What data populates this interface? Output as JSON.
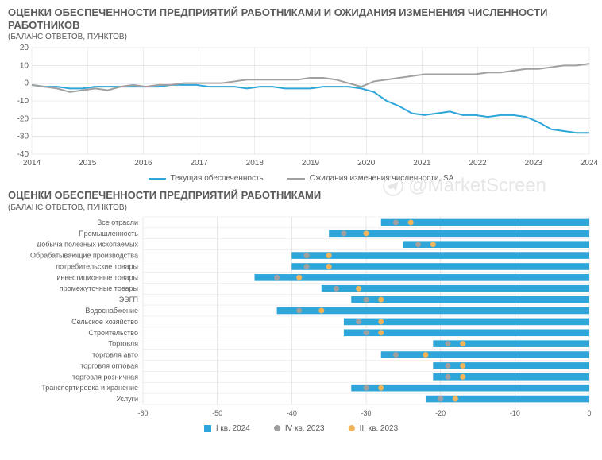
{
  "chart1": {
    "title": "ОЦЕНКИ ОБЕСПЕЧЕННОСТИ ПРЕДПРИЯТИЙ РАБОТНИКАМИ И ОЖИДАНИЯ ИЗМЕНЕНИЯ ЧИСЛЕННОСТИ РАБОТНИКОВ",
    "subtitle": "(БАЛАНС ОТВЕТОВ, ПУНКТОВ)",
    "type": "line",
    "x_labels": [
      "2014",
      "2015",
      "2016",
      "2017",
      "2018",
      "2019",
      "2020",
      "2021",
      "2022",
      "2023",
      "2024"
    ],
    "ylim": [
      -40,
      20
    ],
    "ytick_step": 10,
    "series": [
      {
        "name": "Текущая обеспеченность",
        "color": "#2fa6d9",
        "width": 2,
        "data": [
          -1,
          -2,
          -2,
          -3,
          -3,
          -2,
          -2,
          -2,
          -2,
          -2,
          -2,
          -1,
          -1,
          -1,
          -2,
          -2,
          -2,
          -3,
          -2,
          -2,
          -3,
          -3,
          -3,
          -2,
          -2,
          -2,
          -3,
          -5,
          -10,
          -13,
          -17,
          -18,
          -17,
          -16,
          -18,
          -18,
          -19,
          -18,
          -18,
          -19,
          -22,
          -26,
          -27,
          -28,
          -28
        ]
      },
      {
        "name": "Ожидания изменения численности, SA",
        "color": "#a0a0a0",
        "width": 2,
        "data": [
          -1,
          -2,
          -3,
          -5,
          -4,
          -3,
          -4,
          -2,
          -1,
          -2,
          -1,
          -1,
          0,
          0,
          0,
          0,
          1,
          2,
          2,
          2,
          2,
          2,
          3,
          3,
          2,
          0,
          -2,
          1,
          2,
          3,
          4,
          5,
          5,
          5,
          5,
          5,
          6,
          6,
          7,
          8,
          8,
          9,
          10,
          10,
          11
        ]
      }
    ],
    "background_color": "#ffffff",
    "grid_color": "#d9d9d9",
    "axis_color": "#5a5a5a",
    "label_fontsize": 10
  },
  "chart2": {
    "title": "ОЦЕНКИ ОБЕСПЕЧЕННОСТИ ПРЕДПРИЯТИЙ РАБОТНИКАМИ",
    "subtitle": "(БАЛАНС ОТВЕТОВ, ПУНКТОВ)",
    "type": "bar-horizontal",
    "xlim": [
      -60,
      0
    ],
    "xtick_step": 10,
    "categories": [
      "Все отрасли",
      "Промышленность",
      "Добыча полезных ископаемых",
      "Обрабатывающие производства",
      "потребительские товары",
      "инвестиционные товары",
      "промежуточные товары",
      "ЭЭГП",
      "Водоснабжение",
      "Сельское хозяйство",
      "Строительство",
      "Торговля",
      "торговля авто",
      "торговля оптовая",
      "торговля розничная",
      "Транспортировка и хранение",
      "Услуги"
    ],
    "bar_series": {
      "name": "I кв. 2024",
      "color": "#2fa6d9",
      "values": [
        -28,
        -35,
        -25,
        -40,
        -40,
        -45,
        -36,
        -32,
        -42,
        -33,
        -33,
        -21,
        -28,
        -21,
        -21,
        -32,
        -22
      ]
    },
    "dot_series": [
      {
        "name": "IV кв. 2023",
        "color": "#a0a0a0",
        "values": [
          -26,
          -33,
          -23,
          -38,
          -38,
          -42,
          -34,
          -30,
          -39,
          -31,
          -30,
          -19,
          -26,
          -19,
          -19,
          -30,
          -20
        ]
      },
      {
        "name": "III кв. 2023",
        "color": "#f4b45a",
        "values": [
          -24,
          -30,
          -21,
          -35,
          -35,
          -39,
          -31,
          -28,
          -36,
          -28,
          -28,
          -17,
          -22,
          -17,
          -17,
          -28,
          -18
        ]
      }
    ],
    "background_color": "#ffffff",
    "grid_color": "#d9d9d9",
    "label_color": "#5a5a5a",
    "label_fontsize": 9
  },
  "watermark": "@MarketScreen"
}
